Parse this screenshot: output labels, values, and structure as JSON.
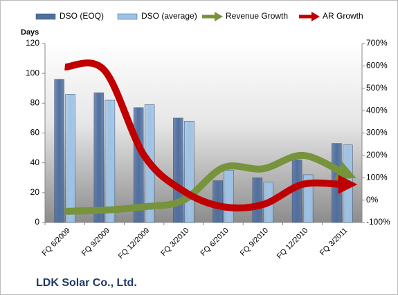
{
  "chart_data": {
    "type": "bar",
    "title": "LDK Solar Co., Ltd.",
    "y_label": "Days",
    "categories": [
      "FQ 6/2009",
      "FQ 9/2009",
      "FQ 12/2009",
      "FQ 3/2010",
      "FQ 6/2010",
      "FQ 9/2010",
      "FQ 12/2010",
      "FQ 3/2011"
    ],
    "series": [
      {
        "name": "DSO (EOQ)",
        "type": "bar",
        "color": "#4f6f9f",
        "values": [
          96,
          87,
          77,
          70,
          28,
          30,
          42,
          53
        ]
      },
      {
        "name": "DSO (average)",
        "type": "bar",
        "color": "#9dc3e6",
        "values": [
          86,
          82,
          79,
          68,
          35,
          27,
          32,
          52
        ]
      },
      {
        "name": "Revenue Growth",
        "type": "line",
        "axis": "y2",
        "color": "#77933c",
        "values": [
          -50,
          -45,
          -30,
          0,
          145,
          140,
          200,
          125
        ]
      },
      {
        "name": "AR Growth",
        "type": "line",
        "axis": "y2",
        "color": "#c00000",
        "values": [
          595,
          580,
          200,
          40,
          -30,
          -20,
          70,
          70
        ]
      }
    ],
    "ylim": [
      0,
      120
    ],
    "yticks": [
      0,
      20,
      40,
      60,
      80,
      100,
      120
    ],
    "y2lim": [
      -100,
      700
    ],
    "y2ticks": [
      {
        "value": -100,
        "label": "-100%"
      },
      {
        "value": 0,
        "label": "0%"
      },
      {
        "value": 100,
        "label": "100%"
      },
      {
        "value": 200,
        "label": "200%"
      },
      {
        "value": 300,
        "label": "300%"
      },
      {
        "value": 400,
        "label": "400%"
      },
      {
        "value": 500,
        "label": "500%"
      },
      {
        "value": 600,
        "label": "600%"
      },
      {
        "value": 700,
        "label": "700%"
      }
    ],
    "grid": false,
    "legend": "top"
  }
}
